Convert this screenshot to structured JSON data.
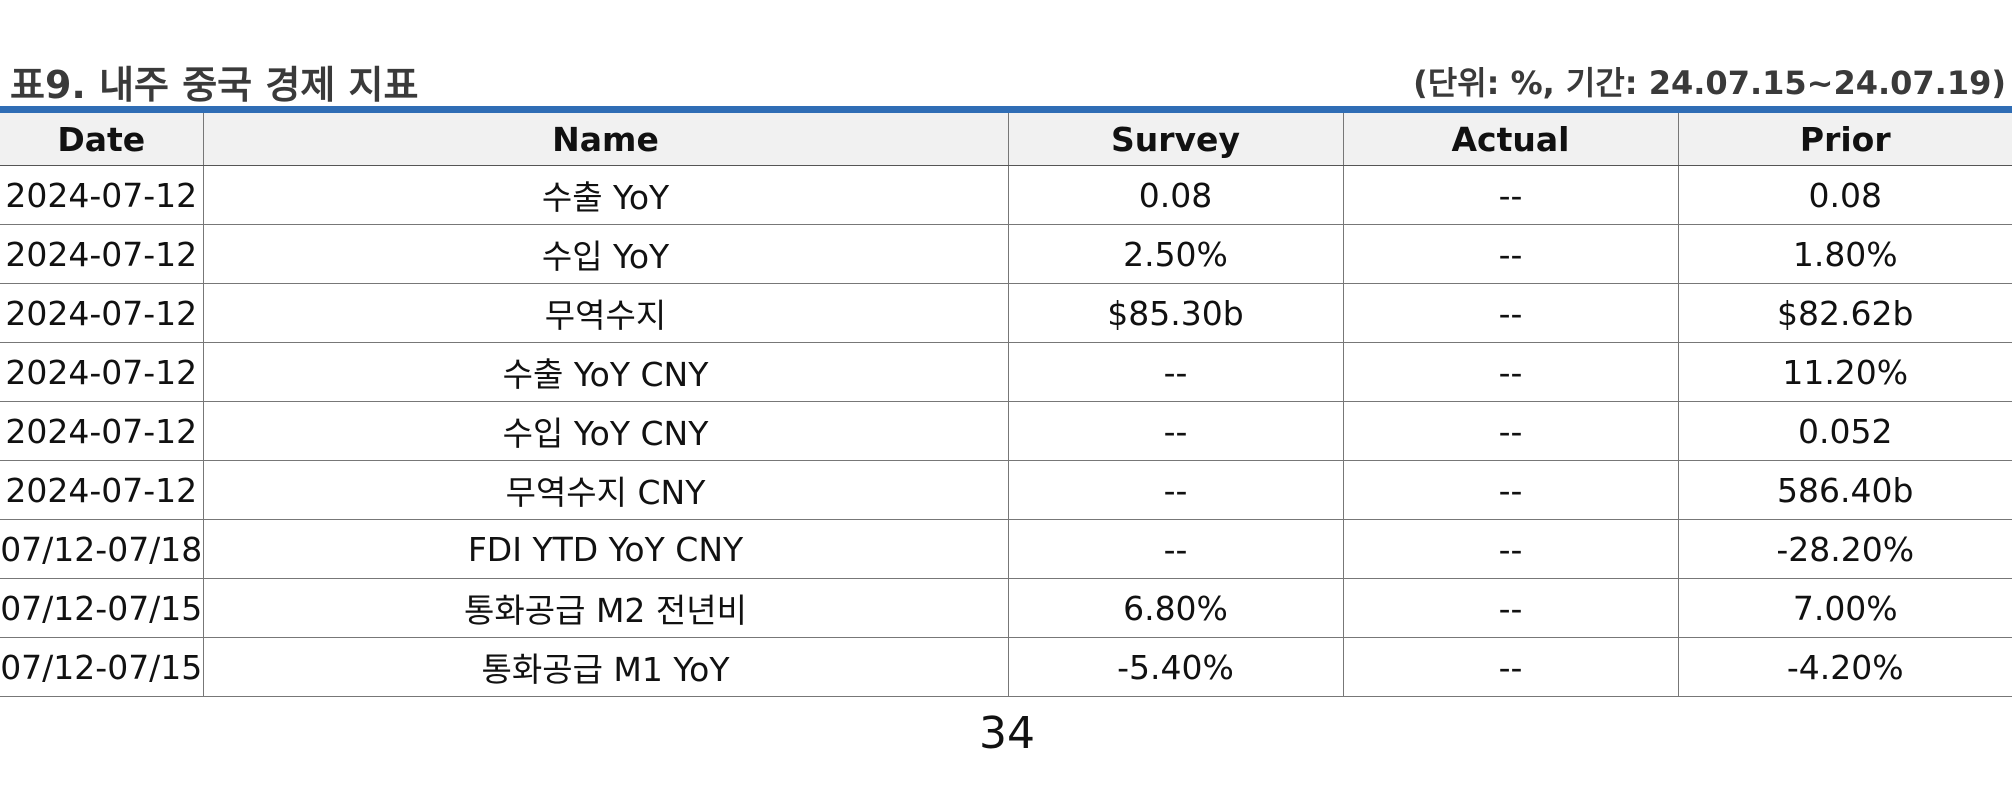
{
  "header": {
    "title": "표9. 내주 중국 경제 지표",
    "unit_note": "(단위: %, 기간: 24.07.15~24.07.19)"
  },
  "table": {
    "columns": [
      "Date",
      "Name",
      "Survey",
      "Actual",
      "Prior"
    ],
    "rows": [
      [
        "2024-07-12",
        "수출 YoY",
        "0.08",
        "--",
        "0.08"
      ],
      [
        "2024-07-12",
        "수입 YoY",
        "2.50%",
        "--",
        "1.80%"
      ],
      [
        "2024-07-12",
        "무역수지",
        "$85.30b",
        "--",
        "$82.62b"
      ],
      [
        "2024-07-12",
        "수출 YoY CNY",
        "--",
        "--",
        "11.20%"
      ],
      [
        "2024-07-12",
        "수입 YoY CNY",
        "--",
        "--",
        "0.052"
      ],
      [
        "2024-07-12",
        "무역수지 CNY",
        "--",
        "--",
        "586.40b"
      ],
      [
        "07/12-07/18",
        "FDI YTD YoY CNY",
        "--",
        "--",
        "-28.20%"
      ],
      [
        "07/12-07/15",
        "통화공급 M2 전년비",
        "6.80%",
        "--",
        "7.00%"
      ],
      [
        "07/12-07/15",
        "통화공급 M1 YoY",
        "-5.40%",
        "--",
        "-4.20%"
      ]
    ]
  },
  "footer": {
    "page_number": "34"
  },
  "colors": {
    "accent_rule": "#2f6db5",
    "header_fill": "#f1f1f1"
  }
}
